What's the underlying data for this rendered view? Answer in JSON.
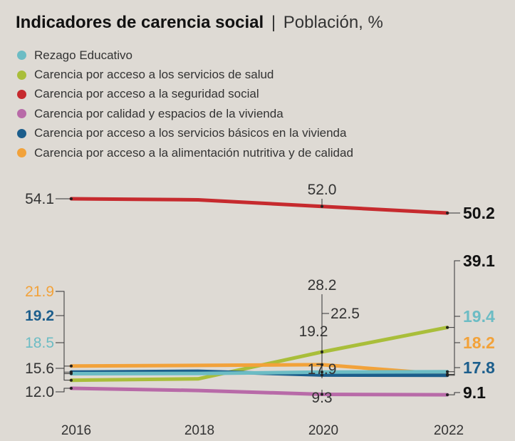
{
  "title": "Indicadores de carencia social",
  "separator": "|",
  "subtitle": "Población, %",
  "chart_data": {
    "type": "line",
    "x": [
      "2016",
      "2018",
      "2020",
      "2022"
    ],
    "series": [
      {
        "name": "Rezago Educativo",
        "color": "#6cbcc4",
        "values": [
          18.5,
          18.6,
          19.2,
          19.4
        ],
        "point_labels": [
          {
            "index": 0,
            "text": "18.5"
          },
          {
            "index": 2,
            "text": "19.2"
          },
          {
            "index": 3,
            "text": "19.4"
          }
        ]
      },
      {
        "name": "Carencia por acceso a los servicios de salud",
        "color": "#a9be3a",
        "values": [
          15.6,
          16.2,
          28.2,
          39.1
        ],
        "point_labels": [
          {
            "index": 0,
            "text": "15.6"
          },
          {
            "index": 2,
            "text": "28.2"
          },
          {
            "index": 3,
            "text": "39.1"
          }
        ]
      },
      {
        "name": "Carencia por acceso a la seguridad social",
        "color": "#c62a2e",
        "values": [
          54.1,
          53.8,
          52.0,
          50.2
        ],
        "point_labels": [
          {
            "index": 0,
            "text": "54.1"
          },
          {
            "index": 2,
            "text": "52.0"
          },
          {
            "index": 3,
            "text": "50.2"
          }
        ]
      },
      {
        "name": "Carencia por calidad y espacios de la vivienda",
        "color": "#b86aa8",
        "values": [
          12.0,
          11.0,
          9.3,
          9.1
        ],
        "point_labels": [
          {
            "index": 0,
            "text": "12.0"
          },
          {
            "index": 2,
            "text": "9.3"
          },
          {
            "index": 3,
            "text": "9.1"
          }
        ]
      },
      {
        "name": "Carencia por acceso a los servicios básicos en la vivienda",
        "color": "#1c5e8c",
        "values": [
          19.2,
          19.6,
          17.9,
          17.8
        ],
        "point_labels": [
          {
            "index": 0,
            "text": "19.2"
          },
          {
            "index": 2,
            "text": "17.9"
          },
          {
            "index": 3,
            "text": "17.8"
          }
        ]
      },
      {
        "name": "Carencia por acceso a la alimentación nutritiva y de calidad",
        "color": "#f2a23a",
        "values": [
          21.9,
          22.2,
          22.5,
          18.2
        ],
        "point_labels": [
          {
            "index": 0,
            "text": "21.9"
          },
          {
            "index": 2,
            "text": "22.5"
          },
          {
            "index": 3,
            "text": "18.2"
          }
        ]
      }
    ],
    "legend_position": "top-left",
    "grid": false
  }
}
